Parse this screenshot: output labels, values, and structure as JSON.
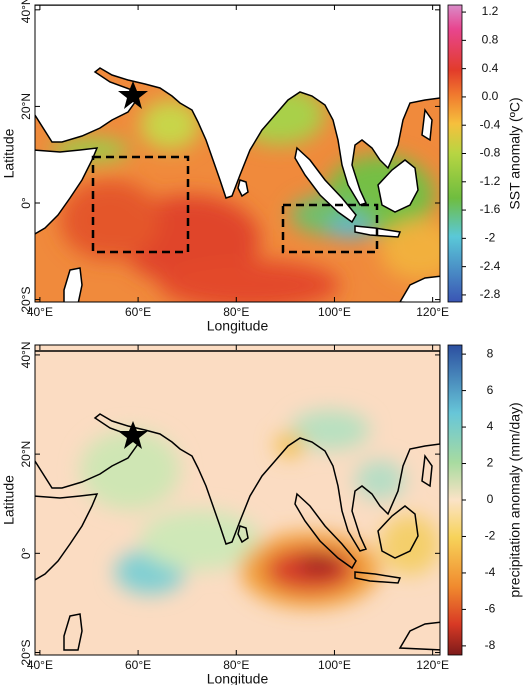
{
  "panels": [
    {
      "xlabel": "Longitude",
      "ylabel": "Latitude",
      "xlim": [
        39,
        121.5
      ],
      "ylim": [
        -20.5,
        41
      ],
      "xticks": [
        {
          "value": 40,
          "label": "40°E"
        },
        {
          "value": 60,
          "label": "60°E"
        },
        {
          "value": 80,
          "label": "80°E"
        },
        {
          "value": 100,
          "label": "100°E"
        },
        {
          "value": 120,
          "label": "120°E"
        }
      ],
      "yticks": [
        {
          "value": 40,
          "label": "40°N"
        },
        {
          "value": 20,
          "label": "20°N"
        },
        {
          "value": 0,
          "label": "0°"
        },
        {
          "value": -20,
          "label": "20°S"
        }
      ],
      "colorbar": {
        "label": "SST anomaly (ºC)",
        "lim": [
          -2.9,
          1.3
        ],
        "ticks": [
          1.2,
          0.8,
          0.4,
          {
            "value": 0,
            "label": "0.0"
          },
          -0.4,
          -0.8,
          -1.2,
          -1.6,
          -2.0,
          -2.4,
          -2.8
        ]
      }
    },
    {
      "xlabel": "Longitude",
      "ylabel": "Latitude",
      "xlim": [
        39,
        121.5
      ],
      "ylim": [
        -20.5,
        42
      ],
      "xticks": [
        {
          "value": 40,
          "label": "40°E"
        },
        {
          "value": 60,
          "label": "60°E"
        },
        {
          "value": 80,
          "label": "80°E"
        },
        {
          "value": 100,
          "label": "100°E"
        },
        {
          "value": 120,
          "label": "120°E"
        }
      ],
      "yticks": [
        {
          "value": 40,
          "label": "40°N"
        },
        {
          "value": 20,
          "label": "20°N"
        },
        {
          "value": 0,
          "label": "0°"
        },
        {
          "value": -20,
          "label": "20°S"
        }
      ],
      "colorbar": {
        "label": "precipitation anomaly (mm/day)",
        "lim": [
          -8.5,
          8.5
        ],
        "ticks": [
          8,
          6,
          4,
          2,
          0,
          -2,
          -4,
          -6,
          -8
        ]
      }
    }
  ]
}
